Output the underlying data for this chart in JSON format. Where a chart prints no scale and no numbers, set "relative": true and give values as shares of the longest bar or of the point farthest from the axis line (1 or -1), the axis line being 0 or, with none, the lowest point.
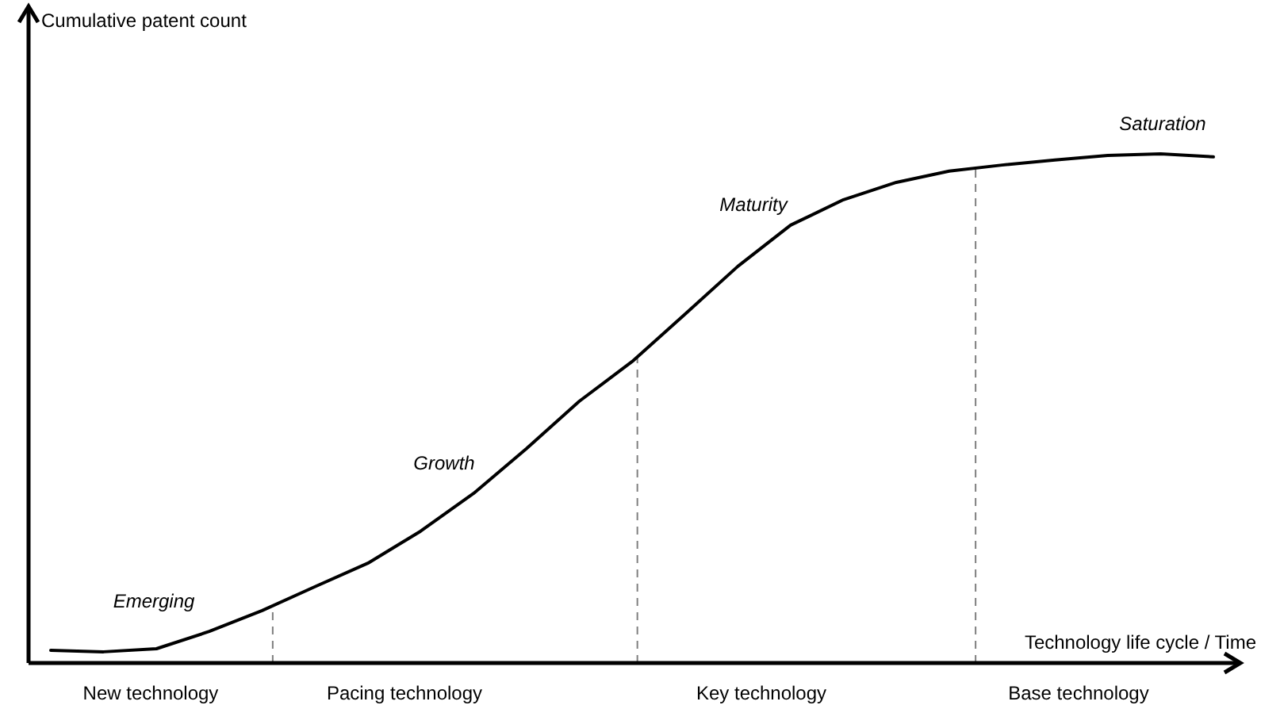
{
  "chart_data": {
    "type": "line",
    "relative": true,
    "xlabel": "Technology life cycle / Time",
    "categories": [
      null,
      null,
      null,
      null,
      null,
      null,
      null,
      null,
      null,
      null,
      null,
      null,
      null,
      null,
      null,
      null,
      null,
      null,
      null,
      null,
      null,
      null,
      null
    ],
    "series": [
      {
        "color": "#000000",
        "values": [
          0.025,
          0.022,
          0.028,
          0.062,
          0.103,
          0.15,
          0.196,
          0.259,
          0.333,
          0.421,
          0.514,
          0.592,
          0.685,
          0.779,
          0.86,
          0.91,
          0.944,
          0.966,
          0.978,
          0.988,
          0.997,
          1.0,
          0.994
        ]
      }
    ],
    "annotations": [
      "Emerging",
      "Growth",
      "Maturity",
      "Saturation",
      "New technology",
      "Pacing technology",
      "Key technology",
      "Base technology",
      "Cumulative patent count"
    ],
    "marker": "none",
    "line_style": "solid"
  }
}
